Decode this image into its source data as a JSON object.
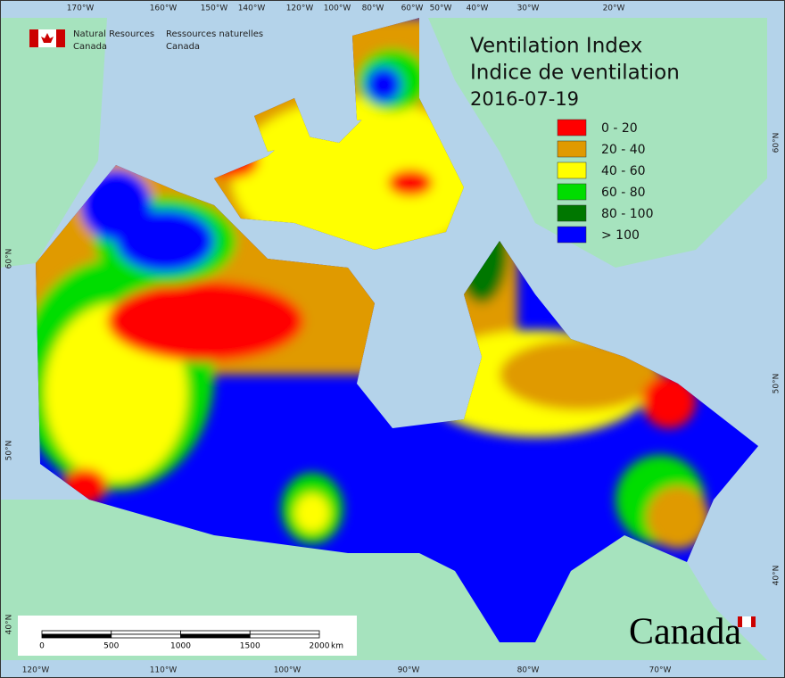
{
  "header": {
    "org_en": [
      "Natural Resources",
      "Canada"
    ],
    "org_fr": [
      "Ressources naturelles",
      "Canada"
    ]
  },
  "title": [
    "Ventilation Index",
    "Indice de ventilation",
    "2016-07-19"
  ],
  "legend": [
    {
      "label": "0 - 20",
      "color": "#ff0000"
    },
    {
      "label": "20 - 40",
      "color": "#e09a00"
    },
    {
      "label": "40 - 60",
      "color": "#ffff00"
    },
    {
      "label": "60 - 80",
      "color": "#00dd00"
    },
    {
      "label": "80 - 100",
      "color": "#007700"
    },
    {
      "label": "> 100",
      "color": "#0000ff"
    }
  ],
  "graticule": {
    "top": [
      "170°W",
      "160°W",
      "150°W",
      "140°W",
      "120°W",
      "100°W",
      "80°W",
      "60°W",
      "50°W",
      "40°W",
      "30°W",
      "20°W"
    ],
    "bottom": [
      "120°W",
      "110°W",
      "100°W",
      "90°W",
      "80°W",
      "70°W"
    ],
    "left": [
      "60°N",
      "50°N",
      "40°N"
    ],
    "right": [
      "60°N",
      "50°N",
      "40°N"
    ]
  },
  "scale_bar": {
    "ticks": [
      0,
      500,
      1000,
      1500,
      2000
    ],
    "unit": "km"
  },
  "wordmark": "Canada"
}
